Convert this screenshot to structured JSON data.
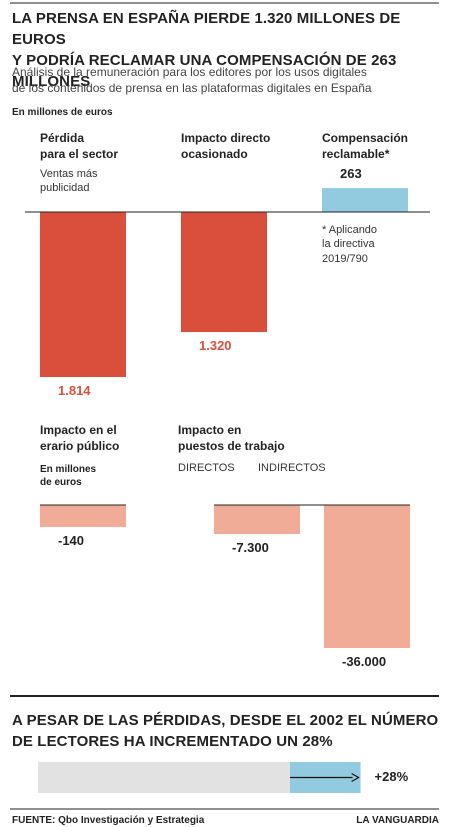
{
  "title": "LA PRENSA EN ESPAÑA PIERDE 1.320 MILLONES DE EUROS\nY PODRÍA RECLAMAR UNA COMPENSACIÓN DE 263 MILLONES",
  "subtitle": "Análisis de la remuneración para los editores por los usos digitales\nde los contenidos de prensa en las plataformas digitales en España",
  "unit_label": "En millones de euros",
  "chart_data": [
    {
      "type": "bar",
      "categories": [
        "Pérdida\npara el sector",
        "Impacto directo\nocasionado",
        "Compensación\nreclamable*"
      ],
      "sublabel": "Ventas más\npublicidad",
      "values": [
        -1814,
        -1320,
        263
      ],
      "value_labels": [
        "1.814",
        "1.320",
        "263"
      ],
      "colors": [
        "#d94f3b",
        "#d94f3b",
        "#92cbe0"
      ],
      "label_colors": [
        "#d94f3b",
        "#d94f3b",
        "#222222"
      ],
      "note": "* Aplicando\nla directiva\n2019/790"
    },
    {
      "type": "bar",
      "title": "Impacto en el\nerario público",
      "subtitle": "En millones\nde euros",
      "values": [
        -140
      ],
      "value_labels": [
        "-140"
      ],
      "color": "#f0ac96"
    },
    {
      "type": "bar",
      "title": "Impacto en\npuestos de trabajo",
      "categories": [
        "DIRECTOS",
        "INDIRECTOS"
      ],
      "values": [
        -7300,
        -36000
      ],
      "value_labels": [
        "-7.300",
        "-36.000"
      ],
      "color": "#f0ac96"
    },
    {
      "type": "progress",
      "title": "A PESAR DE LAS PÉRDIDAS, DESDE EL 2002 EL NÚMERO\nDE LECTORES HA INCREMENTADO UN 28%",
      "values": [
        28
      ],
      "value_labels": [
        "+28%"
      ],
      "colors": [
        "#e2e2e2",
        "#92cbe0"
      ]
    }
  ],
  "footer": {
    "source": "FUENTE: Qbo Investigación y Estrategia",
    "brand": "LA VANGUARDIA"
  }
}
